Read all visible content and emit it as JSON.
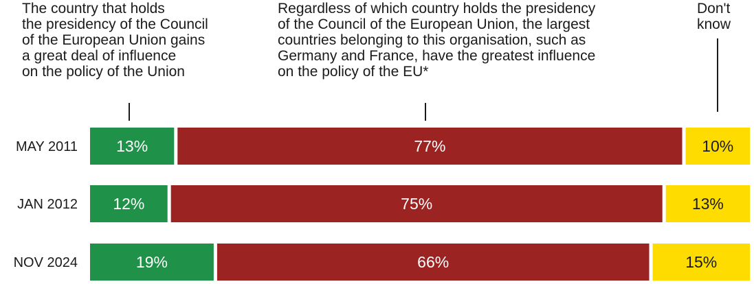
{
  "chart_data": {
    "type": "bar",
    "orientation": "horizontal",
    "stacked": true,
    "normalized": true,
    "categories": [
      "MAY 2011",
      "JAN 2012",
      "NOV 2024"
    ],
    "series": [
      {
        "name": "The country that holds the presidency of the Council of the European Union gains a great deal of influence on the policy of the Union",
        "values": [
          13,
          12,
          19
        ],
        "labels": [
          "13%",
          "12%",
          "19%"
        ],
        "color": "#1f9148",
        "label_color": "#ffffff"
      },
      {
        "name": "Regardless of which country holds the presidency of the Council of the European Union, the largest countries belonging to this organisation, such as Germany and France, have the greatest influence on the policy of the EU*",
        "values": [
          77,
          75,
          66
        ],
        "labels": [
          "77%",
          "75%",
          "66%"
        ],
        "color": "#9b2422",
        "label_color": "#ffffff"
      },
      {
        "name": "Don't know",
        "values": [
          10,
          13,
          15
        ],
        "labels": [
          "10%",
          "13%",
          "15%"
        ],
        "color": "#ffdc00",
        "label_color": "#1a1a1a"
      }
    ],
    "xlim": [
      0,
      100
    ],
    "grid": false,
    "legend": "top"
  },
  "legend_display": [
    "The country that holds\nthe presidency of the Council\nof the European Union gains\na great deal of influence\non the policy of the Union",
    "Regardless of which country holds the presidency\nof the Council of the European Union, the largest\ncountries belonging to this organisation, such as\nGermany and France, have the greatest influence\non the policy of the EU*",
    "Don't\nknow"
  ]
}
